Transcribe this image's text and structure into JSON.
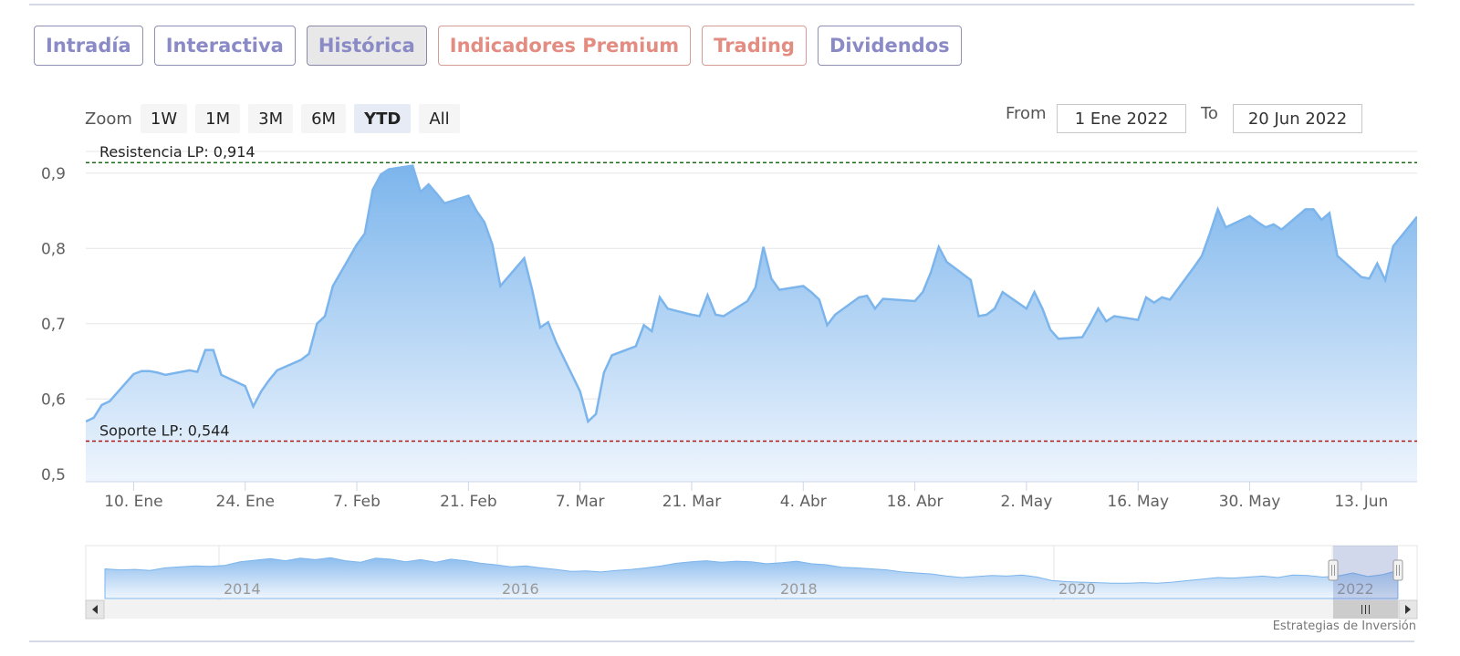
{
  "tabs": [
    {
      "label": "Intradía",
      "active": false
    },
    {
      "label": "Interactiva",
      "active": false
    },
    {
      "label": "Histórica",
      "active": true
    },
    {
      "label": "Indicadores Premium",
      "active": false
    },
    {
      "label": "Trading",
      "active": false
    },
    {
      "label": "Dividendos",
      "active": false
    }
  ],
  "zoom": {
    "label": "Zoom",
    "buttons": [
      "1W",
      "1M",
      "3M",
      "6M",
      "YTD",
      "All"
    ],
    "selected": "YTD"
  },
  "range": {
    "from_label": "From",
    "from_value": "1 Ene 2022",
    "to_label": "To",
    "to_value": "20 Jun 2022"
  },
  "credits": "Estrategias de Inversión",
  "chart_data": {
    "type": "area",
    "title": "",
    "xlabel": "",
    "ylabel": "",
    "ylim": [
      0.49,
      0.93
    ],
    "y_ticks": [
      {
        "value": 0.5,
        "label": "0,5"
      },
      {
        "value": 0.6,
        "label": "0,6"
      },
      {
        "value": 0.7,
        "label": "0,7"
      },
      {
        "value": 0.8,
        "label": "0,8"
      },
      {
        "value": 0.9,
        "label": "0,9"
      }
    ],
    "x_range": [
      "2022-01-04",
      "2022-06-20"
    ],
    "x_ticks": [
      {
        "date": "2022-01-10",
        "label": "10. Ene"
      },
      {
        "date": "2022-01-24",
        "label": "24. Ene"
      },
      {
        "date": "2022-02-07",
        "label": "7. Feb"
      },
      {
        "date": "2022-02-21",
        "label": "21. Feb"
      },
      {
        "date": "2022-03-07",
        "label": "7. Mar"
      },
      {
        "date": "2022-03-21",
        "label": "21. Mar"
      },
      {
        "date": "2022-04-04",
        "label": "4. Abr"
      },
      {
        "date": "2022-04-18",
        "label": "18. Abr"
      },
      {
        "date": "2022-05-02",
        "label": "2. May"
      },
      {
        "date": "2022-05-16",
        "label": "16. May"
      },
      {
        "date": "2022-05-30",
        "label": "30. May"
      },
      {
        "date": "2022-06-13",
        "label": "13. Jun"
      }
    ],
    "plot_lines": [
      {
        "label": "Resistencia LP: 0,914",
        "value": 0.914,
        "color": "#1a6b1a"
      },
      {
        "label": "Soporte LP: 0,544",
        "value": 0.544,
        "color": "#b01818"
      }
    ],
    "series": [
      {
        "color": "#7cb5ec",
        "points": [
          [
            "2022-01-04",
            0.57
          ],
          [
            "2022-01-05",
            0.575
          ],
          [
            "2022-01-06",
            0.592
          ],
          [
            "2022-01-07",
            0.597
          ],
          [
            "2022-01-10",
            0.633
          ],
          [
            "2022-01-11",
            0.637
          ],
          [
            "2022-01-12",
            0.637
          ],
          [
            "2022-01-13",
            0.635
          ],
          [
            "2022-01-14",
            0.632
          ],
          [
            "2022-01-17",
            0.638
          ],
          [
            "2022-01-18",
            0.636
          ],
          [
            "2022-01-19",
            0.665
          ],
          [
            "2022-01-20",
            0.665
          ],
          [
            "2022-01-21",
            0.632
          ],
          [
            "2022-01-24",
            0.617
          ],
          [
            "2022-01-25",
            0.59
          ],
          [
            "2022-01-26",
            0.61
          ],
          [
            "2022-01-27",
            0.625
          ],
          [
            "2022-01-28",
            0.638
          ],
          [
            "2022-01-31",
            0.652
          ],
          [
            "2022-02-01",
            0.66
          ],
          [
            "2022-02-02",
            0.7
          ],
          [
            "2022-02-03",
            0.71
          ],
          [
            "2022-02-04",
            0.75
          ],
          [
            "2022-02-07",
            0.805
          ],
          [
            "2022-02-08",
            0.82
          ],
          [
            "2022-02-09",
            0.878
          ],
          [
            "2022-02-10",
            0.898
          ],
          [
            "2022-02-11",
            0.905
          ],
          [
            "2022-02-14",
            0.91
          ],
          [
            "2022-02-15",
            0.875
          ],
          [
            "2022-02-16",
            0.885
          ],
          [
            "2022-02-17",
            0.873
          ],
          [
            "2022-02-18",
            0.86
          ],
          [
            "2022-02-21",
            0.87
          ],
          [
            "2022-02-22",
            0.85
          ],
          [
            "2022-02-23",
            0.835
          ],
          [
            "2022-02-24",
            0.805
          ],
          [
            "2022-02-25",
            0.75
          ],
          [
            "2022-02-28",
            0.787
          ],
          [
            "2022-03-01",
            0.745
          ],
          [
            "2022-03-02",
            0.695
          ],
          [
            "2022-03-03",
            0.702
          ],
          [
            "2022-03-04",
            0.675
          ],
          [
            "2022-03-07",
            0.61
          ],
          [
            "2022-03-08",
            0.57
          ],
          [
            "2022-03-09",
            0.58
          ],
          [
            "2022-03-10",
            0.635
          ],
          [
            "2022-03-11",
            0.658
          ],
          [
            "2022-03-14",
            0.67
          ],
          [
            "2022-03-15",
            0.698
          ],
          [
            "2022-03-16",
            0.69
          ],
          [
            "2022-03-17",
            0.735
          ],
          [
            "2022-03-18",
            0.72
          ],
          [
            "2022-03-21",
            0.712
          ],
          [
            "2022-03-22",
            0.71
          ],
          [
            "2022-03-23",
            0.738
          ],
          [
            "2022-03-24",
            0.712
          ],
          [
            "2022-03-25",
            0.71
          ],
          [
            "2022-03-28",
            0.73
          ],
          [
            "2022-03-29",
            0.748
          ],
          [
            "2022-03-30",
            0.802
          ],
          [
            "2022-03-31",
            0.76
          ],
          [
            "2022-04-01",
            0.745
          ],
          [
            "2022-04-04",
            0.75
          ],
          [
            "2022-04-05",
            0.742
          ],
          [
            "2022-04-06",
            0.732
          ],
          [
            "2022-04-07",
            0.698
          ],
          [
            "2022-04-08",
            0.712
          ],
          [
            "2022-04-11",
            0.735
          ],
          [
            "2022-04-12",
            0.737
          ],
          [
            "2022-04-13",
            0.72
          ],
          [
            "2022-04-14",
            0.733
          ],
          [
            "2022-04-18",
            0.73
          ],
          [
            "2022-04-19",
            0.742
          ],
          [
            "2022-04-20",
            0.768
          ],
          [
            "2022-04-21",
            0.802
          ],
          [
            "2022-04-22",
            0.782
          ],
          [
            "2022-04-25",
            0.758
          ],
          [
            "2022-04-26",
            0.71
          ],
          [
            "2022-04-27",
            0.712
          ],
          [
            "2022-04-28",
            0.72
          ],
          [
            "2022-04-29",
            0.742
          ],
          [
            "2022-05-02",
            0.72
          ],
          [
            "2022-05-03",
            0.742
          ],
          [
            "2022-05-04",
            0.72
          ],
          [
            "2022-05-05",
            0.692
          ],
          [
            "2022-05-06",
            0.68
          ],
          [
            "2022-05-09",
            0.682
          ],
          [
            "2022-05-10",
            0.7
          ],
          [
            "2022-05-11",
            0.72
          ],
          [
            "2022-05-12",
            0.703
          ],
          [
            "2022-05-13",
            0.71
          ],
          [
            "2022-05-16",
            0.705
          ],
          [
            "2022-05-17",
            0.735
          ],
          [
            "2022-05-18",
            0.728
          ],
          [
            "2022-05-19",
            0.735
          ],
          [
            "2022-05-20",
            0.732
          ],
          [
            "2022-05-23",
            0.775
          ],
          [
            "2022-05-24",
            0.79
          ],
          [
            "2022-05-25",
            0.82
          ],
          [
            "2022-05-26",
            0.852
          ],
          [
            "2022-05-27",
            0.828
          ],
          [
            "2022-05-30",
            0.843
          ],
          [
            "2022-05-31",
            0.835
          ],
          [
            "2022-06-01",
            0.828
          ],
          [
            "2022-06-02",
            0.832
          ],
          [
            "2022-06-03",
            0.825
          ],
          [
            "2022-06-06",
            0.852
          ],
          [
            "2022-06-07",
            0.852
          ],
          [
            "2022-06-08",
            0.838
          ],
          [
            "2022-06-09",
            0.847
          ],
          [
            "2022-06-10",
            0.79
          ],
          [
            "2022-06-13",
            0.762
          ],
          [
            "2022-06-14",
            0.76
          ],
          [
            "2022-06-15",
            0.78
          ],
          [
            "2022-06-16",
            0.758
          ],
          [
            "2022-06-17",
            0.803
          ],
          [
            "2022-06-20",
            0.842
          ]
        ]
      }
    ],
    "navigator": {
      "year_labels": [
        "2014",
        "2016",
        "2018",
        "2020",
        "2022"
      ],
      "series": [
        0.58,
        0.56,
        0.57,
        0.55,
        0.6,
        0.62,
        0.64,
        0.63,
        0.65,
        0.72,
        0.75,
        0.78,
        0.74,
        0.79,
        0.76,
        0.8,
        0.74,
        0.71,
        0.79,
        0.77,
        0.72,
        0.76,
        0.71,
        0.77,
        0.74,
        0.69,
        0.66,
        0.62,
        0.64,
        0.6,
        0.57,
        0.53,
        0.54,
        0.52,
        0.55,
        0.57,
        0.6,
        0.64,
        0.69,
        0.72,
        0.74,
        0.71,
        0.73,
        0.72,
        0.68,
        0.7,
        0.73,
        0.68,
        0.66,
        0.61,
        0.6,
        0.58,
        0.56,
        0.52,
        0.5,
        0.48,
        0.44,
        0.41,
        0.43,
        0.45,
        0.44,
        0.46,
        0.42,
        0.35,
        0.33,
        0.32,
        0.31,
        0.3,
        0.3,
        0.31,
        0.3,
        0.32,
        0.35,
        0.38,
        0.41,
        0.4,
        0.42,
        0.44,
        0.41,
        0.46,
        0.45,
        0.42,
        0.44,
        0.5,
        0.43,
        0.47,
        0.55
      ]
    }
  }
}
